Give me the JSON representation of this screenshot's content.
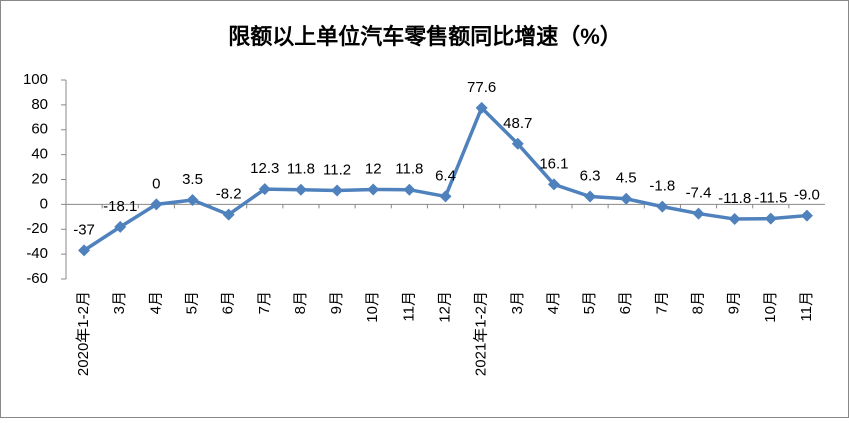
{
  "chart_data": {
    "type": "line",
    "title": "限额以上单位汽车零售额同比增速（%）",
    "categories": [
      "2020年1-2月",
      "3月",
      "4月",
      "5月",
      "6月",
      "7月",
      "8月",
      "9月",
      "10月",
      "11月",
      "12月",
      "2021年1-2月",
      "3月",
      "4月",
      "5月",
      "6月",
      "7月",
      "8月",
      "9月",
      "10月",
      "11月"
    ],
    "values": [
      -37,
      -18.1,
      0,
      3.5,
      -8.2,
      12.3,
      11.8,
      11.2,
      12,
      11.8,
      6.4,
      77.6,
      48.7,
      16.1,
      6.3,
      4.5,
      -1.8,
      -7.4,
      -11.8,
      -11.5,
      -9.0
    ],
    "value_labels": [
      "-37",
      "-18.1",
      "0",
      "3.5",
      "-8.2",
      "12.3",
      "11.8",
      "11.2",
      "12",
      "11.8",
      "6.4",
      "77.6",
      "48.7",
      "16.1",
      "6.3",
      "4.5",
      "-1.8",
      "-7.4",
      "-11.8",
      "-11.5",
      "-9.0"
    ],
    "color": "#4f81bd",
    "ylim": [
      -60,
      100
    ],
    "yticks": [
      -60,
      -40,
      -20,
      0,
      20,
      40,
      60,
      80,
      100
    ],
    "grid": false
  }
}
